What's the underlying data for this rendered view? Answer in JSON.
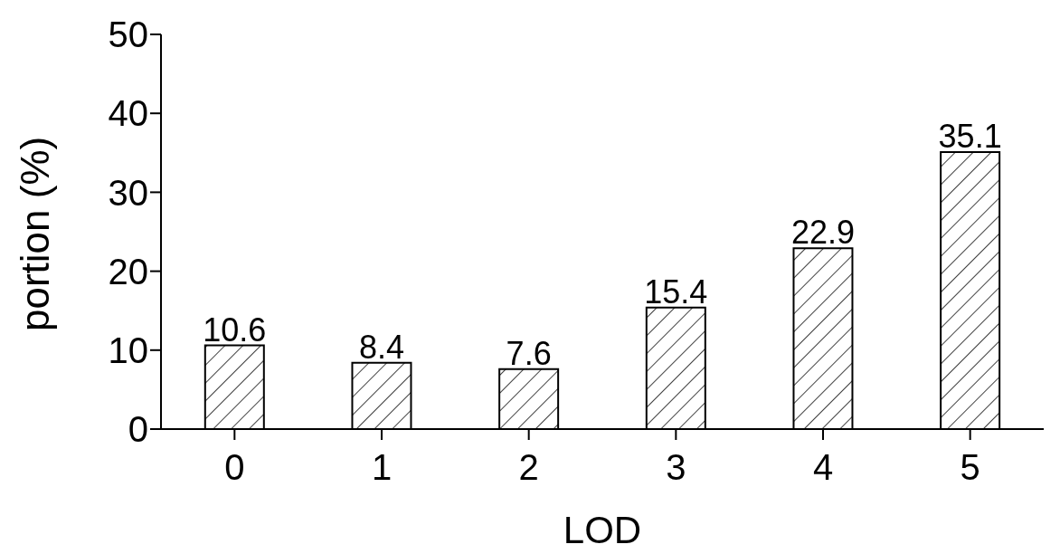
{
  "chart_data": {
    "type": "bar",
    "xlabel": "LOD",
    "ylabel": "portion (%)",
    "categories": [
      "0",
      "1",
      "2",
      "3",
      "4",
      "5"
    ],
    "values": [
      10.6,
      8.4,
      7.6,
      15.4,
      22.9,
      35.1
    ],
    "color": "#000000",
    "ylim": [
      0,
      50
    ],
    "yticks": [
      0,
      10,
      20,
      30,
      40,
      50
    ],
    "grid": false,
    "data_labels": true
  }
}
